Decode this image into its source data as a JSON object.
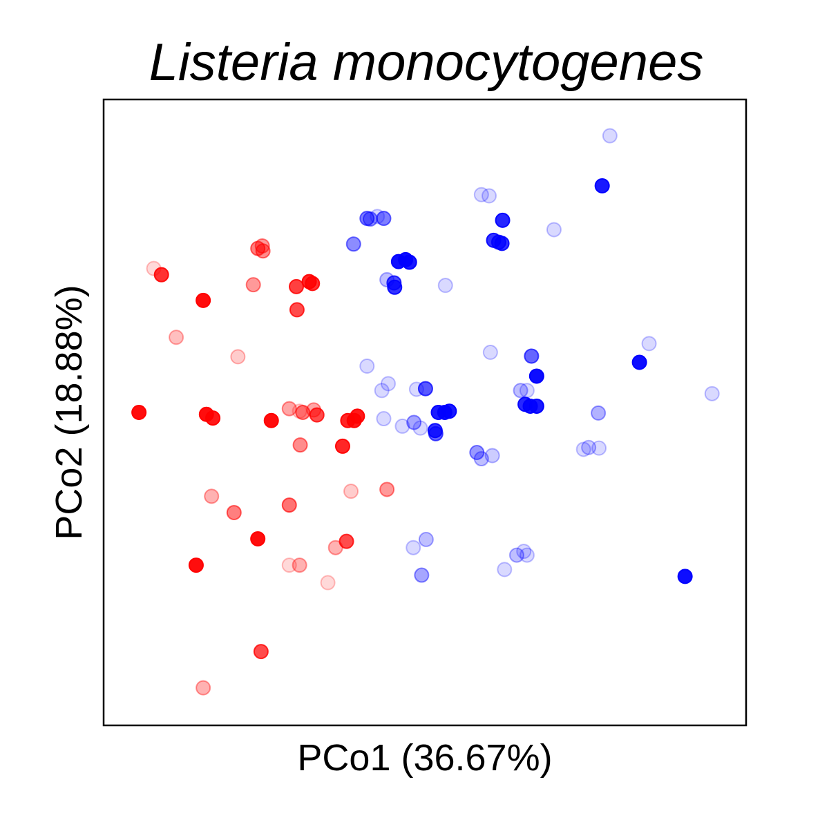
{
  "chart_data": {
    "type": "scatter",
    "title": "Listeria monocytogenes",
    "xlabel": "PCo1 (36.67%)",
    "ylabel": "PCo2 (18.88%)",
    "xlim": [
      0,
      1
    ],
    "ylim": [
      0,
      1
    ],
    "grid": false,
    "ticks_shown": false,
    "series": [
      {
        "color": "#ff0000",
        "points": [
          [
            0.078,
            0.73,
            0.15
          ],
          [
            0.09,
            0.72,
            0.8
          ],
          [
            0.113,
            0.62,
            0.25
          ],
          [
            0.155,
            0.679,
            0.95
          ],
          [
            0.209,
            0.589,
            0.2
          ],
          [
            0.233,
            0.704,
            0.4
          ],
          [
            0.24,
            0.762,
            0.5
          ],
          [
            0.247,
            0.766,
            0.4
          ],
          [
            0.248,
            0.758,
            0.45
          ],
          [
            0.3,
            0.701,
            0.75
          ],
          [
            0.301,
            0.664,
            0.7
          ],
          [
            0.32,
            0.709,
            0.85
          ],
          [
            0.325,
            0.706,
            0.8
          ],
          [
            0.055,
            0.5,
            0.95
          ],
          [
            0.16,
            0.497,
            0.95
          ],
          [
            0.17,
            0.491,
            0.9
          ],
          [
            0.261,
            0.487,
            0.95
          ],
          [
            0.289,
            0.506,
            0.35
          ],
          [
            0.305,
            0.502,
            0.15
          ],
          [
            0.31,
            0.5,
            0.5
          ],
          [
            0.327,
            0.504,
            0.35
          ],
          [
            0.332,
            0.496,
            0.7
          ],
          [
            0.38,
            0.487,
            0.85
          ],
          [
            0.39,
            0.487,
            0.9
          ],
          [
            0.395,
            0.494,
            0.9
          ],
          [
            0.372,
            0.446,
            0.85
          ],
          [
            0.306,
            0.448,
            0.45
          ],
          [
            0.385,
            0.374,
            0.2
          ],
          [
            0.441,
            0.377,
            0.4
          ],
          [
            0.168,
            0.366,
            0.3
          ],
          [
            0.203,
            0.34,
            0.5
          ],
          [
            0.289,
            0.352,
            0.55
          ],
          [
            0.24,
            0.298,
            0.95
          ],
          [
            0.378,
            0.294,
            0.7
          ],
          [
            0.361,
            0.284,
            0.3
          ],
          [
            0.144,
            0.256,
            0.95
          ],
          [
            0.289,
            0.256,
            0.15
          ],
          [
            0.305,
            0.256,
            0.3
          ],
          [
            0.349,
            0.228,
            0.15
          ],
          [
            0.245,
            0.118,
            0.7
          ],
          [
            0.155,
            0.06,
            0.3
          ]
        ]
      },
      {
        "color": "#0000ff",
        "points": [
          [
            0.788,
            0.942,
            0.15
          ],
          [
            0.776,
            0.862,
            0.9
          ],
          [
            0.588,
            0.848,
            0.15
          ],
          [
            0.6,
            0.846,
            0.15
          ],
          [
            0.621,
            0.807,
            0.85
          ],
          [
            0.701,
            0.792,
            0.15
          ],
          [
            0.415,
            0.809,
            0.4
          ],
          [
            0.41,
            0.81,
            0.5
          ],
          [
            0.426,
            0.813,
            0.15
          ],
          [
            0.436,
            0.81,
            0.5
          ],
          [
            0.389,
            0.769,
            0.45
          ],
          [
            0.607,
            0.775,
            0.8
          ],
          [
            0.615,
            0.772,
            0.75
          ],
          [
            0.62,
            0.77,
            0.8
          ],
          [
            0.459,
            0.741,
            0.95
          ],
          [
            0.47,
            0.744,
            0.95
          ],
          [
            0.476,
            0.74,
            0.9
          ],
          [
            0.441,
            0.712,
            0.25
          ],
          [
            0.452,
            0.707,
            0.7
          ],
          [
            0.453,
            0.7,
            0.8
          ],
          [
            0.532,
            0.703,
            0.15
          ],
          [
            0.849,
            0.61,
            0.15
          ],
          [
            0.602,
            0.596,
            0.15
          ],
          [
            0.41,
            0.574,
            0.15
          ],
          [
            0.666,
            0.59,
            0.6
          ],
          [
            0.674,
            0.558,
            0.95
          ],
          [
            0.834,
            0.58,
            0.95
          ],
          [
            0.443,
            0.546,
            0.15
          ],
          [
            0.433,
            0.535,
            0.15
          ],
          [
            0.487,
            0.537,
            0.15
          ],
          [
            0.501,
            0.538,
            0.65
          ],
          [
            0.649,
            0.535,
            0.25
          ],
          [
            0.659,
            0.535,
            0.15
          ],
          [
            0.664,
            0.51,
            0.9
          ],
          [
            0.674,
            0.51,
            0.9
          ],
          [
            0.656,
            0.513,
            0.85
          ],
          [
            0.521,
            0.5,
            0.9
          ],
          [
            0.531,
            0.5,
            0.95
          ],
          [
            0.538,
            0.502,
            0.9
          ],
          [
            0.947,
            0.53,
            0.15
          ],
          [
            0.77,
            0.499,
            0.3
          ],
          [
            0.436,
            0.49,
            0.15
          ],
          [
            0.483,
            0.484,
            0.35
          ],
          [
            0.465,
            0.478,
            0.15
          ],
          [
            0.493,
            0.475,
            0.15
          ],
          [
            0.517,
            0.466,
            0.6
          ],
          [
            0.516,
            0.471,
            0.8
          ],
          [
            0.581,
            0.436,
            0.4
          ],
          [
            0.588,
            0.426,
            0.25
          ],
          [
            0.605,
            0.431,
            0.2
          ],
          [
            0.747,
            0.441,
            0.15
          ],
          [
            0.755,
            0.444,
            0.2
          ],
          [
            0.771,
            0.443,
            0.15
          ],
          [
            0.502,
            0.297,
            0.25
          ],
          [
            0.482,
            0.284,
            0.15
          ],
          [
            0.643,
            0.272,
            0.25
          ],
          [
            0.654,
            0.278,
            0.15
          ],
          [
            0.659,
            0.272,
            0.15
          ],
          [
            0.624,
            0.249,
            0.15
          ],
          [
            0.495,
            0.24,
            0.35
          ],
          [
            0.905,
            0.238,
            0.95
          ]
        ]
      }
    ]
  }
}
